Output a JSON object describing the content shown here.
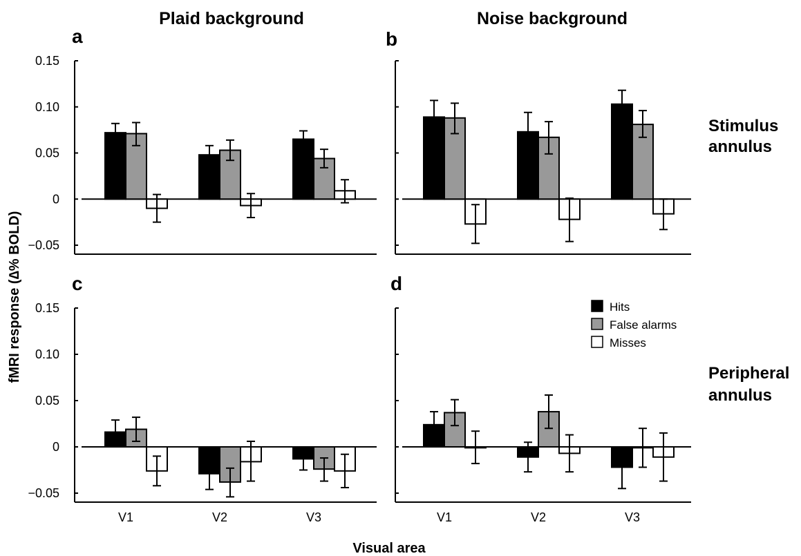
{
  "columns": [
    "Plaid background",
    "Noise background"
  ],
  "rows": [
    {
      "line1": "Stimulus",
      "line2": "annulus"
    },
    {
      "line1": "Peripheral",
      "line2": "annulus"
    }
  ],
  "ylabel": "fMRI response (∆% BOLD)",
  "xlabel": "Visual area",
  "colors": {
    "Hits": "#000000",
    "False alarms": "#999999",
    "Misses": "#ffffff"
  },
  "chart_data": [
    {
      "panel": "a",
      "type": "bar",
      "categories": [
        "V1",
        "V2",
        "V3"
      ],
      "ylim": [
        -0.06,
        0.15
      ],
      "yticks": [
        "0.15",
        "0.10",
        "0.05",
        "0",
        "−0.05"
      ],
      "series": [
        {
          "name": "Hits",
          "values": [
            0.072,
            0.048,
            0.065
          ],
          "err_low": [
            0.061,
            0.038,
            0.055
          ],
          "err_high": [
            0.082,
            0.058,
            0.074
          ]
        },
        {
          "name": "False alarms",
          "values": [
            0.071,
            0.053,
            0.044
          ],
          "err_low": [
            0.058,
            0.042,
            0.034
          ],
          "err_high": [
            0.083,
            0.064,
            0.054
          ]
        },
        {
          "name": "Misses",
          "values": [
            -0.01,
            -0.007,
            0.009
          ],
          "err_low": [
            -0.025,
            -0.02,
            -0.004
          ],
          "err_high": [
            0.005,
            0.006,
            0.021
          ]
        }
      ]
    },
    {
      "panel": "b",
      "type": "bar",
      "categories": [
        "V1",
        "V2",
        "V3"
      ],
      "ylim": [
        -0.06,
        0.15
      ],
      "yticks": [],
      "series": [
        {
          "name": "Hits",
          "values": [
            0.089,
            0.073,
            0.103
          ],
          "err_low": [
            0.071,
            0.053,
            0.089
          ],
          "err_high": [
            0.107,
            0.094,
            0.118
          ]
        },
        {
          "name": "False alarms",
          "values": [
            0.088,
            0.067,
            0.081
          ],
          "err_low": [
            0.071,
            0.049,
            0.067
          ],
          "err_high": [
            0.104,
            0.084,
            0.096
          ]
        },
        {
          "name": "Misses",
          "values": [
            -0.027,
            -0.022,
            -0.016
          ],
          "err_low": [
            -0.048,
            -0.046,
            -0.033
          ],
          "err_high": [
            -0.006,
            0.001,
            0.0
          ]
        }
      ]
    },
    {
      "panel": "c",
      "type": "bar",
      "categories": [
        "V1",
        "V2",
        "V3"
      ],
      "ylim": [
        -0.06,
        0.15
      ],
      "yticks": [
        "0.15",
        "0.10",
        "0.05",
        "0",
        "−0.05"
      ],
      "series": [
        {
          "name": "Hits",
          "values": [
            0.016,
            -0.029,
            -0.013
          ],
          "err_low": [
            0.004,
            -0.046,
            -0.025
          ],
          "err_high": [
            0.029,
            -0.012,
            -0.001
          ]
        },
        {
          "name": "False alarms",
          "values": [
            0.019,
            -0.038,
            -0.024
          ],
          "err_low": [
            0.006,
            -0.054,
            -0.037
          ],
          "err_high": [
            0.032,
            -0.023,
            -0.012
          ]
        },
        {
          "name": "Misses",
          "values": [
            -0.026,
            -0.016,
            -0.026
          ],
          "err_low": [
            -0.042,
            -0.037,
            -0.044
          ],
          "err_high": [
            -0.01,
            0.006,
            -0.008
          ]
        }
      ]
    },
    {
      "panel": "d",
      "type": "bar",
      "categories": [
        "V1",
        "V2",
        "V3"
      ],
      "ylim": [
        -0.06,
        0.15
      ],
      "yticks": [],
      "series": [
        {
          "name": "Hits",
          "values": [
            0.024,
            -0.011,
            -0.022
          ],
          "err_low": [
            0.011,
            -0.027,
            -0.045
          ],
          "err_high": [
            0.038,
            0.005,
            0.0
          ]
        },
        {
          "name": "False alarms",
          "values": [
            0.037,
            0.038,
            -0.001
          ],
          "err_low": [
            0.023,
            0.02,
            -0.022
          ],
          "err_high": [
            0.051,
            0.056,
            0.02
          ]
        },
        {
          "name": "Misses",
          "values": [
            -0.001,
            -0.007,
            -0.011
          ],
          "err_low": [
            -0.018,
            -0.027,
            -0.037
          ],
          "err_high": [
            0.017,
            0.013,
            0.015
          ]
        }
      ]
    }
  ]
}
